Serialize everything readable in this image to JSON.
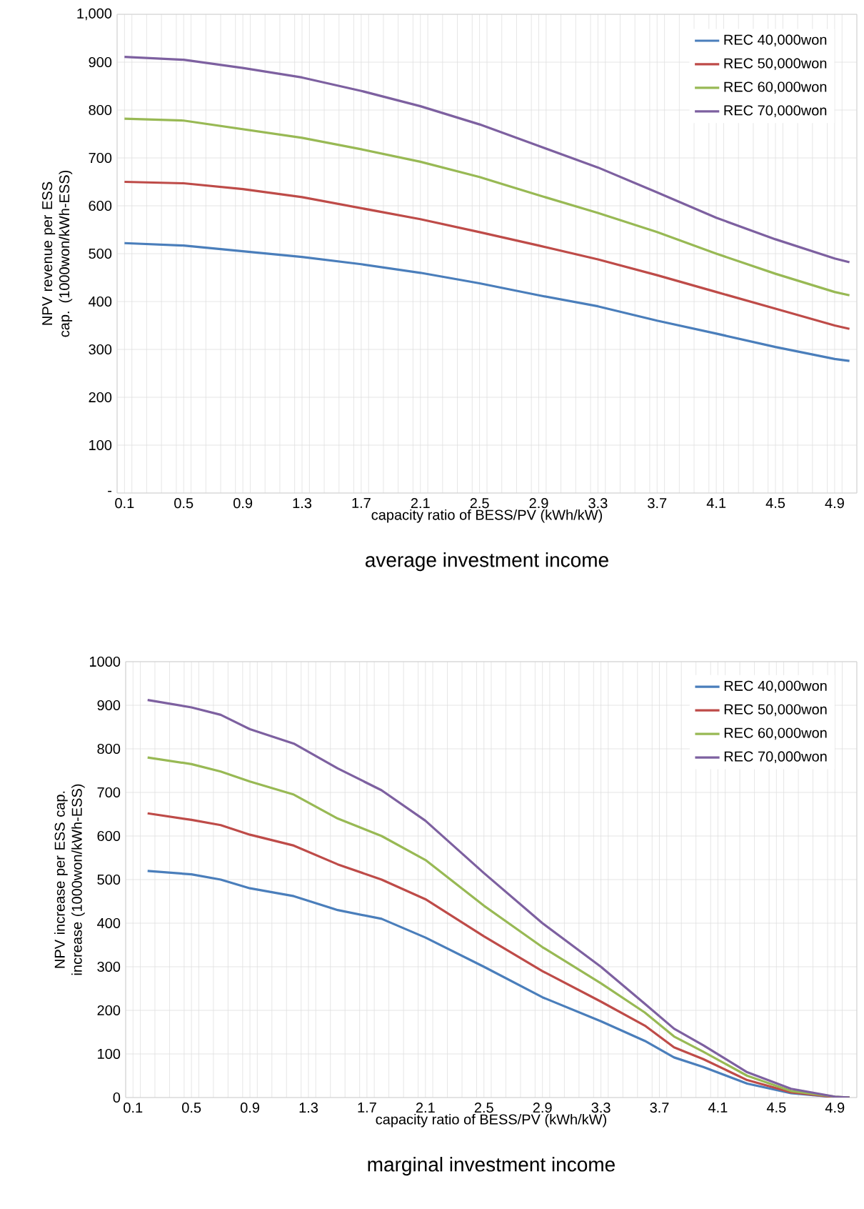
{
  "chart_data": [
    {
      "type": "line",
      "title": "average investment income",
      "xlabel": "capacity ratio of BESS/PV (kWh/kW)",
      "ylabel": "NPV revenue per ESS cap. (1000won/kWh-ESS)",
      "x": [
        0.1,
        0.5,
        0.9,
        1.3,
        1.7,
        2.1,
        2.5,
        2.9,
        3.3,
        3.7,
        4.1,
        4.5,
        4.9,
        5.0
      ],
      "series": [
        {
          "name": "REC 40,000won",
          "color": "#4a7ebb",
          "values": [
            522,
            517,
            505,
            493,
            478,
            460,
            438,
            413,
            390,
            360,
            333,
            305,
            280,
            276
          ]
        },
        {
          "name": "REC 50,000won",
          "color": "#be4b48",
          "values": [
            650,
            647,
            635,
            618,
            595,
            572,
            545,
            517,
            488,
            455,
            420,
            385,
            350,
            343
          ]
        },
        {
          "name": "REC 60,000won",
          "color": "#98b954",
          "values": [
            782,
            778,
            760,
            742,
            718,
            692,
            660,
            622,
            585,
            545,
            500,
            458,
            420,
            413
          ]
        },
        {
          "name": "REC 70,000won",
          "color": "#7d60a0",
          "values": [
            911,
            905,
            888,
            868,
            840,
            808,
            770,
            725,
            680,
            628,
            575,
            530,
            490,
            482
          ]
        }
      ],
      "xlim": [
        0.05,
        5.05
      ],
      "xticks": [
        {
          "value": 0.1,
          "label": "0.1"
        },
        {
          "value": 0.5,
          "label": "0.5"
        },
        {
          "value": 0.9,
          "label": "0.9"
        },
        {
          "value": 1.3,
          "label": "1.3"
        },
        {
          "value": 1.7,
          "label": "1.7"
        },
        {
          "value": 2.1,
          "label": "2.1"
        },
        {
          "value": 2.5,
          "label": "2.5"
        },
        {
          "value": 2.9,
          "label": "2.9"
        },
        {
          "value": 3.3,
          "label": "3.3"
        },
        {
          "value": 3.7,
          "label": "3.7"
        },
        {
          "value": 4.1,
          "label": "4.1"
        },
        {
          "value": 4.5,
          "label": "4.5"
        },
        {
          "value": 4.9,
          "label": "4.9"
        },
        {
          "value": 0.05,
          "label": null
        },
        {
          "value": 0.15,
          "label": null
        },
        {
          "value": 0.25,
          "label": null
        },
        {
          "value": 0.35,
          "label": null
        },
        {
          "value": 0.45,
          "label": null
        },
        {
          "value": 0.55,
          "label": null
        },
        {
          "value": 0.65,
          "label": null
        },
        {
          "value": 0.75,
          "label": null
        },
        {
          "value": 0.85,
          "label": null
        },
        {
          "value": 0.95,
          "label": null
        },
        {
          "value": 1.05,
          "label": null
        },
        {
          "value": 1.15,
          "label": null
        },
        {
          "value": 1.25,
          "label": null
        },
        {
          "value": 1.35,
          "label": null
        },
        {
          "value": 1.45,
          "label": null
        },
        {
          "value": 1.55,
          "label": null
        },
        {
          "value": 1.65,
          "label": null
        },
        {
          "value": 1.75,
          "label": null
        },
        {
          "value": 1.85,
          "label": null
        },
        {
          "value": 1.95,
          "label": null
        },
        {
          "value": 2.05,
          "label": null
        },
        {
          "value": 2.15,
          "label": null
        },
        {
          "value": 2.25,
          "label": null
        },
        {
          "value": 2.35,
          "label": null
        },
        {
          "value": 2.45,
          "label": null
        },
        {
          "value": 2.55,
          "label": null
        },
        {
          "value": 2.65,
          "label": null
        },
        {
          "value": 2.75,
          "label": null
        },
        {
          "value": 2.85,
          "label": null
        },
        {
          "value": 2.95,
          "label": null
        },
        {
          "value": 3.05,
          "label": null
        },
        {
          "value": 3.15,
          "label": null
        },
        {
          "value": 3.25,
          "label": null
        },
        {
          "value": 3.35,
          "label": null
        },
        {
          "value": 3.45,
          "label": null
        },
        {
          "value": 3.55,
          "label": null
        },
        {
          "value": 3.65,
          "label": null
        },
        {
          "value": 3.75,
          "label": null
        },
        {
          "value": 3.85,
          "label": null
        },
        {
          "value": 3.95,
          "label": null
        },
        {
          "value": 4.05,
          "label": null
        },
        {
          "value": 4.15,
          "label": null
        },
        {
          "value": 4.25,
          "label": null
        },
        {
          "value": 4.35,
          "label": null
        },
        {
          "value": 4.45,
          "label": null
        },
        {
          "value": 4.55,
          "label": null
        },
        {
          "value": 4.65,
          "label": null
        },
        {
          "value": 4.75,
          "label": null
        },
        {
          "value": 4.85,
          "label": null
        },
        {
          "value": 4.95,
          "label": null
        },
        {
          "value": 5.05,
          "label": null
        }
      ],
      "ylim": [
        0,
        1000
      ],
      "yticks": [
        {
          "value": 0,
          "label": "-"
        },
        100,
        200,
        300,
        400,
        500,
        600,
        700,
        800,
        900,
        {
          "value": 1000,
          "label": "1,000"
        }
      ],
      "grid": true,
      "legend": "top right"
    },
    {
      "type": "line",
      "title": "marginal investment income",
      "xlabel": "capacity ratio of BESS/PV (kWh/kW)",
      "ylabel": "NPV increase per ESS cap. increase (1000won/kWh-ESS)",
      "x": [
        0.2,
        0.5,
        0.7,
        0.9,
        1.2,
        1.5,
        1.8,
        2.1,
        2.5,
        2.9,
        3.3,
        3.6,
        3.8,
        4.0,
        4.3,
        4.6,
        4.9,
        5.0
      ],
      "series": [
        {
          "name": "REC 40,000won",
          "color": "#4a7ebb",
          "values": [
            520,
            512,
            500,
            480,
            462,
            430,
            410,
            367,
            300,
            230,
            175,
            130,
            92,
            70,
            32,
            10,
            1,
            0
          ]
        },
        {
          "name": "REC 50,000won",
          "color": "#be4b48",
          "values": [
            652,
            637,
            625,
            603,
            578,
            535,
            500,
            455,
            370,
            290,
            220,
            165,
            115,
            88,
            40,
            12,
            1,
            0
          ]
        },
        {
          "name": "REC 60,000won",
          "color": "#98b954",
          "values": [
            780,
            765,
            748,
            725,
            695,
            640,
            600,
            545,
            440,
            345,
            262,
            195,
            140,
            105,
            50,
            15,
            2,
            0
          ]
        },
        {
          "name": "REC 70,000won",
          "color": "#7d60a0",
          "values": [
            912,
            895,
            878,
            845,
            812,
            755,
            705,
            635,
            515,
            400,
            300,
            215,
            158,
            120,
            58,
            20,
            2,
            0
          ]
        }
      ],
      "xlim": [
        0.05,
        5.05
      ],
      "xticks": [
        {
          "value": 0.1,
          "label": "0.1"
        },
        {
          "value": 0.5,
          "label": "0.5"
        },
        {
          "value": 0.9,
          "label": "0.9"
        },
        {
          "value": 1.3,
          "label": "1.3"
        },
        {
          "value": 1.7,
          "label": "1.7"
        },
        {
          "value": 2.1,
          "label": "2.1"
        },
        {
          "value": 2.5,
          "label": "2.5"
        },
        {
          "value": 2.9,
          "label": "2.9"
        },
        {
          "value": 3.3,
          "label": "3.3"
        },
        {
          "value": 3.7,
          "label": "3.7"
        },
        {
          "value": 4.1,
          "label": "4.1"
        },
        {
          "value": 4.5,
          "label": "4.5"
        },
        {
          "value": 4.9,
          "label": "4.9"
        },
        {
          "value": 0.05,
          "label": null
        },
        {
          "value": 0.15,
          "label": null
        },
        {
          "value": 0.25,
          "label": null
        },
        {
          "value": 0.35,
          "label": null
        },
        {
          "value": 0.45,
          "label": null
        },
        {
          "value": 0.55,
          "label": null
        },
        {
          "value": 0.65,
          "label": null
        },
        {
          "value": 0.75,
          "label": null
        },
        {
          "value": 0.85,
          "label": null
        },
        {
          "value": 0.95,
          "label": null
        },
        {
          "value": 1.05,
          "label": null
        },
        {
          "value": 1.15,
          "label": null
        },
        {
          "value": 1.25,
          "label": null
        },
        {
          "value": 1.35,
          "label": null
        },
        {
          "value": 1.45,
          "label": null
        },
        {
          "value": 1.55,
          "label": null
        },
        {
          "value": 1.65,
          "label": null
        },
        {
          "value": 1.75,
          "label": null
        },
        {
          "value": 1.85,
          "label": null
        },
        {
          "value": 1.95,
          "label": null
        },
        {
          "value": 2.05,
          "label": null
        },
        {
          "value": 2.15,
          "label": null
        },
        {
          "value": 2.25,
          "label": null
        },
        {
          "value": 2.35,
          "label": null
        },
        {
          "value": 2.45,
          "label": null
        },
        {
          "value": 2.55,
          "label": null
        },
        {
          "value": 2.65,
          "label": null
        },
        {
          "value": 2.75,
          "label": null
        },
        {
          "value": 2.85,
          "label": null
        },
        {
          "value": 2.95,
          "label": null
        },
        {
          "value": 3.05,
          "label": null
        },
        {
          "value": 3.15,
          "label": null
        },
        {
          "value": 3.25,
          "label": null
        },
        {
          "value": 3.35,
          "label": null
        },
        {
          "value": 3.45,
          "label": null
        },
        {
          "value": 3.55,
          "label": null
        },
        {
          "value": 3.65,
          "label": null
        },
        {
          "value": 3.75,
          "label": null
        },
        {
          "value": 3.85,
          "label": null
        },
        {
          "value": 3.95,
          "label": null
        },
        {
          "value": 4.05,
          "label": null
        },
        {
          "value": 4.15,
          "label": null
        },
        {
          "value": 4.25,
          "label": null
        },
        {
          "value": 4.35,
          "label": null
        },
        {
          "value": 4.45,
          "label": null
        },
        {
          "value": 4.55,
          "label": null
        },
        {
          "value": 4.65,
          "label": null
        },
        {
          "value": 4.75,
          "label": null
        },
        {
          "value": 4.85,
          "label": null
        },
        {
          "value": 4.95,
          "label": null
        },
        {
          "value": 5.05,
          "label": null
        }
      ],
      "ylim": [
        0,
        1000
      ],
      "yticks": [
        0,
        100,
        200,
        300,
        400,
        500,
        600,
        700,
        800,
        900,
        1000
      ],
      "grid": true,
      "legend": "top right"
    }
  ]
}
